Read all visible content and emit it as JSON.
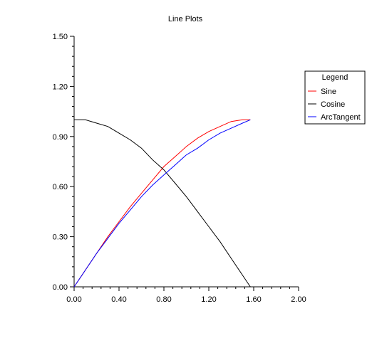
{
  "chart_data": {
    "type": "line",
    "title": "Line Plots",
    "xlabel": "",
    "ylabel": "",
    "xlim": [
      0,
      2.0
    ],
    "ylim": [
      0,
      1.5
    ],
    "x_ticks": [
      "0.00",
      "0.40",
      "0.80",
      "1.20",
      "1.60",
      "2.00"
    ],
    "y_ticks": [
      "0.00",
      "0.30",
      "0.60",
      "0.90",
      "1.20",
      "1.50"
    ],
    "grid": false,
    "legend": {
      "title": "Legend",
      "placement": "right",
      "entries": [
        "Sine",
        "Cosine",
        "ArcTangent"
      ]
    },
    "series": [
      {
        "name": "Sine",
        "color": "#ff0000",
        "x": [
          0,
          0.1,
          0.2,
          0.3,
          0.4,
          0.5,
          0.6,
          0.7,
          0.8,
          0.9,
          1.0,
          1.1,
          1.2,
          1.3,
          1.4,
          1.5,
          1.57
        ],
        "y": [
          0,
          0.1,
          0.2,
          0.3,
          0.39,
          0.48,
          0.56,
          0.64,
          0.72,
          0.78,
          0.84,
          0.89,
          0.93,
          0.96,
          0.99,
          1.0,
          1.0
        ]
      },
      {
        "name": "Cosine",
        "color": "#000000",
        "x": [
          0,
          0.1,
          0.2,
          0.3,
          0.4,
          0.5,
          0.6,
          0.7,
          0.8,
          0.9,
          1.0,
          1.1,
          1.2,
          1.3,
          1.4,
          1.5,
          1.57
        ],
        "y": [
          1.0,
          1.0,
          0.98,
          0.96,
          0.92,
          0.88,
          0.83,
          0.76,
          0.7,
          0.62,
          0.54,
          0.45,
          0.36,
          0.27,
          0.17,
          0.07,
          0.0
        ]
      },
      {
        "name": "ArcTangent",
        "color": "#0000ff",
        "x": [
          0,
          0.1,
          0.2,
          0.3,
          0.4,
          0.5,
          0.6,
          0.7,
          0.8,
          0.9,
          1.0,
          1.1,
          1.2,
          1.3,
          1.4,
          1.5,
          1.57
        ],
        "y": [
          0,
          0.1,
          0.2,
          0.29,
          0.38,
          0.46,
          0.54,
          0.61,
          0.67,
          0.73,
          0.79,
          0.83,
          0.88,
          0.92,
          0.95,
          0.98,
          1.0
        ]
      }
    ]
  }
}
